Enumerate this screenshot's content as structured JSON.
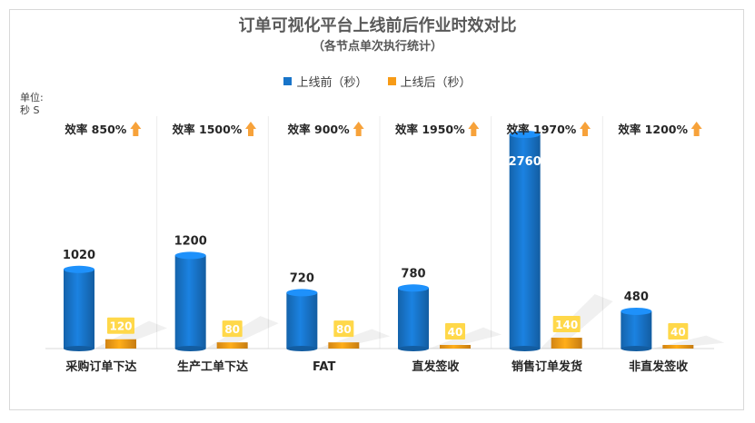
{
  "title": "订单可视化平台上线前后作业时效对比",
  "subtitle": "（各节点单次执行统计）",
  "unit_line1": "单位:",
  "unit_line2": "秒 S",
  "colors": {
    "before": "#1874c9",
    "after": "#f79b16",
    "label_box": "#ffd84a",
    "arrow": "#f7a23a"
  },
  "chart_data": {
    "type": "bar",
    "title": "订单可视化平台上线前后作业时效对比",
    "subtitle": "（各节点单次执行统计）",
    "ylabel": "单位: 秒 S",
    "xlabel": "",
    "ylim": [
      0,
      2800
    ],
    "grid": false,
    "legend_position": "top",
    "categories": [
      "采购订单下达",
      "生产工单下达",
      "FAT",
      "直发签收",
      "销售订单发货",
      "非直发签收"
    ],
    "series": [
      {
        "name": "上线前（秒）",
        "values": [
          1020,
          1200,
          720,
          780,
          2760,
          480
        ]
      },
      {
        "name": "上线后（秒）",
        "values": [
          120,
          80,
          80,
          40,
          140,
          40
        ]
      }
    ],
    "efficiency": [
      "效率  850%",
      "效率  1500%",
      "效率  900%",
      "效率  1950%",
      "效率  1970%",
      "效率  1200%"
    ]
  }
}
